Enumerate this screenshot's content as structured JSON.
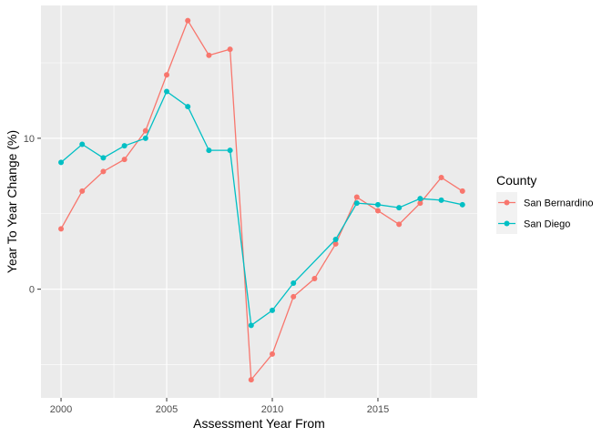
{
  "chart_data": {
    "type": "line",
    "xlabel": "Assessment Year From",
    "ylabel": "Year To Year Change (%)",
    "xlim": [
      1999.05,
      2019.7
    ],
    "ylim": [
      -7.2,
      18.8
    ],
    "x_ticks": [
      2000,
      2005,
      2010,
      2015
    ],
    "y_ticks": [
      0,
      10
    ],
    "grid": true,
    "legend": {
      "title": "County",
      "position": "right"
    },
    "series": [
      {
        "name": "San Bernardino",
        "color": "#F8766D",
        "points": [
          {
            "x": 2000,
            "y": 4.0
          },
          {
            "x": 2001,
            "y": 6.5
          },
          {
            "x": 2002,
            "y": 7.8
          },
          {
            "x": 2003,
            "y": 8.6
          },
          {
            "x": 2004,
            "y": 10.5
          },
          {
            "x": 2005,
            "y": 14.2
          },
          {
            "x": 2006,
            "y": 17.8
          },
          {
            "x": 2007,
            "y": 15.5
          },
          {
            "x": 2008,
            "y": 15.9
          },
          {
            "x": 2009,
            "y": -6.0
          },
          {
            "x": 2010,
            "y": -4.3
          },
          {
            "x": 2011,
            "y": -0.5
          },
          {
            "x": 2012,
            "y": 0.7
          },
          {
            "x": 2013,
            "y": 3.0
          },
          {
            "x": 2014,
            "y": 6.1
          },
          {
            "x": 2015,
            "y": 5.2
          },
          {
            "x": 2016,
            "y": 4.3
          },
          {
            "x": 2017,
            "y": 5.7
          },
          {
            "x": 2018,
            "y": 7.4
          },
          {
            "x": 2019,
            "y": 6.5
          }
        ]
      },
      {
        "name": "San Diego",
        "color": "#00BFC4",
        "points": [
          {
            "x": 2000,
            "y": 8.4
          },
          {
            "x": 2001,
            "y": 9.6
          },
          {
            "x": 2002,
            "y": 8.7
          },
          {
            "x": 2003,
            "y": 9.5
          },
          {
            "x": 2004,
            "y": 10.0
          },
          {
            "x": 2005,
            "y": 13.1
          },
          {
            "x": 2006,
            "y": 12.1
          },
          {
            "x": 2007,
            "y": 9.2
          },
          {
            "x": 2008,
            "y": 9.2
          },
          {
            "x": 2009,
            "y": -2.4
          },
          {
            "x": 2010,
            "y": -1.4
          },
          {
            "x": 2011,
            "y": 0.4
          },
          {
            "x": 2013,
            "y": 3.3
          },
          {
            "x": 2014,
            "y": 5.7
          },
          {
            "x": 2015,
            "y": 5.6
          },
          {
            "x": 2016,
            "y": 5.4
          },
          {
            "x": 2017,
            "y": 6.0
          },
          {
            "x": 2018,
            "y": 5.9
          },
          {
            "x": 2019,
            "y": 5.6
          }
        ]
      }
    ]
  }
}
